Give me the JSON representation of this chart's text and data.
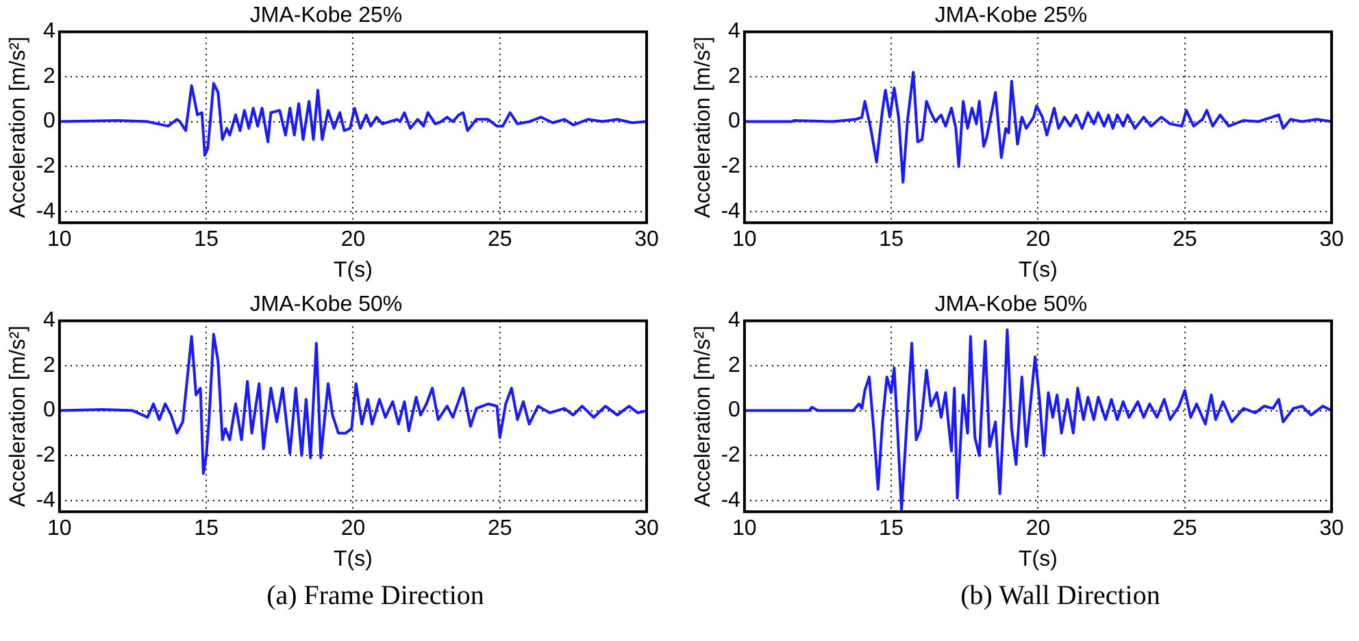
{
  "chart_data": [
    {
      "type": "line",
      "title": "JMA-Kobe 25%",
      "xlabel": "T(s)",
      "ylabel": "Acceleration [m/s²]",
      "xlim": [
        10,
        30
      ],
      "xticks": [
        10,
        15,
        20,
        25,
        30
      ],
      "ylim": [
        -4.5,
        4
      ],
      "yticks": [
        -4,
        -2,
        0,
        2,
        4
      ],
      "grid": true,
      "legend": false,
      "marker": "none",
      "line_style": "solid",
      "series": [
        {
          "color": "#1a1aff",
          "x": [
            10,
            12,
            13,
            13.7,
            14,
            14.1,
            14.3,
            14.5,
            14.7,
            14.85,
            14.95,
            15.05,
            15.15,
            15.25,
            15.4,
            15.55,
            15.7,
            15.8,
            16,
            16.15,
            16.3,
            16.45,
            16.6,
            16.75,
            16.9,
            17.1,
            17.2,
            17.5,
            17.7,
            17.85,
            18,
            18.15,
            18.3,
            18.5,
            18.65,
            18.8,
            18.95,
            19.15,
            19.35,
            19.55,
            19.7,
            19.9,
            20.05,
            20.25,
            20.45,
            20.6,
            20.8,
            21,
            21.5,
            21.6,
            21.75,
            21.95,
            22.2,
            22.4,
            22.55,
            22.8,
            23,
            23.2,
            23.4,
            23.6,
            23.75,
            23.9,
            24.2,
            24.6,
            24.9,
            25.1,
            25.35,
            25.6,
            26,
            26.4,
            26.8,
            27.2,
            27.5,
            28,
            28.5,
            29,
            29.5,
            30
          ],
          "values": [
            0,
            0.05,
            0,
            -0.2,
            0.1,
            0,
            -0.4,
            1.6,
            0.3,
            0.4,
            -1.5,
            -1.2,
            0.2,
            1.7,
            1.3,
            -0.8,
            -0.3,
            -0.6,
            0.3,
            -0.4,
            0.5,
            -0.3,
            0.6,
            -0.2,
            0.6,
            -0.9,
            0.4,
            0.5,
            -0.6,
            0.6,
            -0.6,
            0.8,
            -0.8,
            0.9,
            -0.8,
            1.4,
            -0.8,
            0.5,
            -0.3,
            0.4,
            -0.4,
            -0.3,
            0.6,
            -0.3,
            0.3,
            -0.2,
            0.2,
            -0.1,
            0.1,
            0,
            0.4,
            -0.3,
            0.1,
            -0.2,
            0.4,
            -0.1,
            0,
            0.2,
            0,
            0.3,
            0.4,
            -0.4,
            0.1,
            0.1,
            -0.2,
            -0.2,
            0.4,
            -0.1,
            0,
            0.2,
            -0.05,
            0.1,
            -0.15,
            0.1,
            0,
            0.1,
            -0.05,
            0
          ]
        }
      ]
    },
    {
      "type": "line",
      "title": "JMA-Kobe 25%",
      "xlabel": "T(s)",
      "ylabel": "Acceleration [m/s²]",
      "xlim": [
        10,
        30
      ],
      "xticks": [
        10,
        15,
        20,
        25,
        30
      ],
      "ylim": [
        -4.5,
        4
      ],
      "yticks": [
        -4,
        -2,
        0,
        2,
        4
      ],
      "grid": true,
      "legend": false,
      "marker": "none",
      "line_style": "solid",
      "series": [
        {
          "color": "#1a1aff",
          "x": [
            10,
            11.6,
            11.7,
            13,
            13.8,
            14,
            14.1,
            14.3,
            14.5,
            14.7,
            14.8,
            14.95,
            15.1,
            15.25,
            15.4,
            15.55,
            15.75,
            15.9,
            16.05,
            16.2,
            16.35,
            16.5,
            16.7,
            16.85,
            17.05,
            17.2,
            17.3,
            17.45,
            17.6,
            17.75,
            17.9,
            18,
            18.15,
            18.25,
            18.4,
            18.55,
            18.75,
            18.9,
            19,
            19.1,
            19.3,
            19.45,
            19.6,
            19.85,
            19.95,
            20.15,
            20.3,
            20.55,
            20.7,
            20.9,
            21.1,
            21.3,
            21.5,
            21.7,
            21.9,
            22.05,
            22.25,
            22.4,
            22.55,
            22.7,
            22.9,
            23.05,
            23.3,
            23.6,
            23.85,
            24.2,
            24.5,
            24.9,
            25.05,
            25.3,
            25.6,
            25.75,
            25.95,
            26.2,
            26.5,
            27,
            27.5,
            28.2,
            28.35,
            28.6,
            29,
            29.5,
            30
          ],
          "values": [
            0,
            0,
            0.05,
            0,
            0.1,
            0.2,
            0.9,
            -0.3,
            -1.8,
            0.5,
            1.4,
            0.2,
            1.5,
            0.2,
            -2.7,
            0,
            2.2,
            -0.9,
            -0.8,
            0.9,
            0.4,
            0,
            0.3,
            -0.2,
            0.6,
            -0.3,
            -2,
            0.9,
            -0.3,
            0.6,
            -0.1,
            0.9,
            -1.1,
            -0.7,
            0.3,
            1.3,
            -1.6,
            -0.3,
            -0.5,
            1.8,
            -1,
            0.2,
            -0.3,
            0.2,
            0.7,
            0.2,
            -0.6,
            0.6,
            -0.3,
            0.2,
            -0.2,
            0.3,
            -0.3,
            0.4,
            -0.1,
            0.4,
            -0.2,
            0.3,
            -0.3,
            0.3,
            -0.2,
            0.3,
            -0.3,
            0.2,
            -0.2,
            0.2,
            -0.1,
            -0.2,
            0.5,
            -0.2,
            0.1,
            0.5,
            -0.2,
            0.3,
            -0.2,
            0.05,
            0,
            0.3,
            -0.3,
            0.1,
            0,
            0.1,
            0
          ]
        }
      ]
    },
    {
      "type": "line",
      "title": "JMA-Kobe 50%",
      "xlabel": "T(s)",
      "ylabel": "Acceleration [m/s²]",
      "xlim": [
        10,
        30
      ],
      "xticks": [
        10,
        15,
        20,
        25,
        30
      ],
      "ylim": [
        -4.5,
        4
      ],
      "yticks": [
        -4,
        -2,
        0,
        2,
        4
      ],
      "grid": true,
      "legend": false,
      "marker": "none",
      "line_style": "solid",
      "annotations": [
        "(a) Frame Direction"
      ],
      "series": [
        {
          "color": "#1a1aff",
          "x": [
            10,
            11.5,
            12.5,
            13,
            13.2,
            13.4,
            13.6,
            13.8,
            14,
            14.2,
            14.35,
            14.5,
            14.65,
            14.8,
            14.9,
            15,
            15.1,
            15.25,
            15.4,
            15.55,
            15.65,
            15.8,
            16,
            16.2,
            16.4,
            16.55,
            16.8,
            16.95,
            17.2,
            17.4,
            17.6,
            17.85,
            18.05,
            18.25,
            18.4,
            18.55,
            18.75,
            18.9,
            19.15,
            19.3,
            19.5,
            19.75,
            19.95,
            20.1,
            20.3,
            20.5,
            20.65,
            20.9,
            21.1,
            21.35,
            21.55,
            21.75,
            21.9,
            22.15,
            22.3,
            22.5,
            22.7,
            22.9,
            23.2,
            23.4,
            23.75,
            24,
            24.2,
            24.6,
            24.9,
            25,
            25.2,
            25.4,
            25.6,
            25.8,
            26,
            26.3,
            26.7,
            27.2,
            27.5,
            27.8,
            28.2,
            28.6,
            29,
            29.4,
            29.7,
            30
          ],
          "values": [
            0,
            0.05,
            0,
            -0.3,
            0.3,
            -0.4,
            0.3,
            -0.2,
            -1,
            -0.5,
            1.4,
            3.3,
            0.7,
            1,
            -2.8,
            -2,
            -0.3,
            3.4,
            2.2,
            -1.3,
            -0.8,
            -1.3,
            0.3,
            -1.3,
            1.3,
            -1,
            1.2,
            -1.7,
            1,
            -0.5,
            1,
            -1.9,
            1,
            -2,
            0.5,
            -2.1,
            3,
            -2.1,
            1.2,
            -0.2,
            -1,
            -1,
            -0.8,
            1.2,
            -0.6,
            0.5,
            -0.6,
            0.5,
            -0.3,
            0.4,
            -0.6,
            0.4,
            -0.9,
            0.6,
            -0.2,
            0.3,
            1,
            -0.4,
            0.2,
            -0.3,
            1,
            -0.7,
            0.1,
            0.3,
            0.2,
            -1.2,
            0.3,
            1,
            -0.4,
            0.4,
            -0.6,
            0.2,
            -0.1,
            0.1,
            -0.2,
            0.2,
            -0.3,
            0.2,
            -0.2,
            0.2,
            -0.1,
            0
          ]
        }
      ]
    },
    {
      "type": "line",
      "title": "JMA-Kobe 50%",
      "xlabel": "T(s)",
      "ylabel": "Acceleration [m/s²]",
      "xlim": [
        10,
        30
      ],
      "xticks": [
        10,
        15,
        20,
        25,
        30
      ],
      "ylim": [
        -4.5,
        4
      ],
      "yticks": [
        -4,
        -2,
        0,
        2,
        4
      ],
      "grid": true,
      "legend": false,
      "marker": "none",
      "line_style": "solid",
      "annotations": [
        "(b) Wall Direction"
      ],
      "series": [
        {
          "color": "#1a1aff",
          "x": [
            10,
            12.2,
            12.3,
            12.5,
            13.7,
            13.9,
            14,
            14.1,
            14.25,
            14.4,
            14.55,
            14.7,
            14.85,
            15,
            15.1,
            15.2,
            15.35,
            15.5,
            15.7,
            15.85,
            16,
            16.2,
            16.35,
            16.55,
            16.7,
            16.85,
            16.95,
            17.05,
            17.15,
            17.25,
            17.45,
            17.6,
            17.7,
            17.85,
            18,
            18.2,
            18.35,
            18.55,
            18.7,
            18.85,
            18.95,
            19.1,
            19.25,
            19.45,
            19.6,
            19.9,
            20.05,
            20.2,
            20.35,
            20.5,
            20.65,
            20.8,
            21,
            21.2,
            21.35,
            21.55,
            21.7,
            21.9,
            22.05,
            22.3,
            22.5,
            22.7,
            22.9,
            23.1,
            23.4,
            23.6,
            23.8,
            24.05,
            24.3,
            24.5,
            24.8,
            25,
            25.2,
            25.4,
            25.7,
            25.9,
            26.05,
            26.3,
            26.6,
            27,
            27.4,
            27.7,
            28,
            28.2,
            28.35,
            28.7,
            29,
            29.3,
            29.7,
            30
          ],
          "values": [
            0,
            0,
            0.15,
            0,
            0,
            0.3,
            0.1,
            0.9,
            1.5,
            -0.8,
            -3.5,
            -0.5,
            1.5,
            0.8,
            1.9,
            -0.5,
            -4.4,
            -1.2,
            3,
            -1.3,
            -0.8,
            1.8,
            0.2,
            0.8,
            -0.3,
            0.8,
            -0.6,
            -1.8,
            1,
            -3.9,
            0.7,
            -1,
            3.3,
            -1.2,
            -2,
            3.1,
            -1.6,
            -0.5,
            -3.7,
            0.3,
            3.6,
            -0.8,
            -2.4,
            1.5,
            -1.6,
            2.4,
            0.5,
            -2,
            0.8,
            -0.3,
            0.7,
            -1,
            0.5,
            -1,
            1,
            -0.4,
            0.6,
            -0.4,
            0.6,
            -0.4,
            0.5,
            -0.4,
            0.4,
            -0.3,
            0.4,
            -0.3,
            0.3,
            -0.3,
            0.5,
            -0.4,
            0.2,
            0.9,
            -0.3,
            0.3,
            -0.6,
            0.7,
            -0.4,
            0.4,
            -0.5,
            0.1,
            -0.1,
            0.2,
            0.1,
            0.5,
            -0.5,
            0.1,
            0.2,
            -0.2,
            0.2,
            0
          ]
        }
      ]
    }
  ]
}
